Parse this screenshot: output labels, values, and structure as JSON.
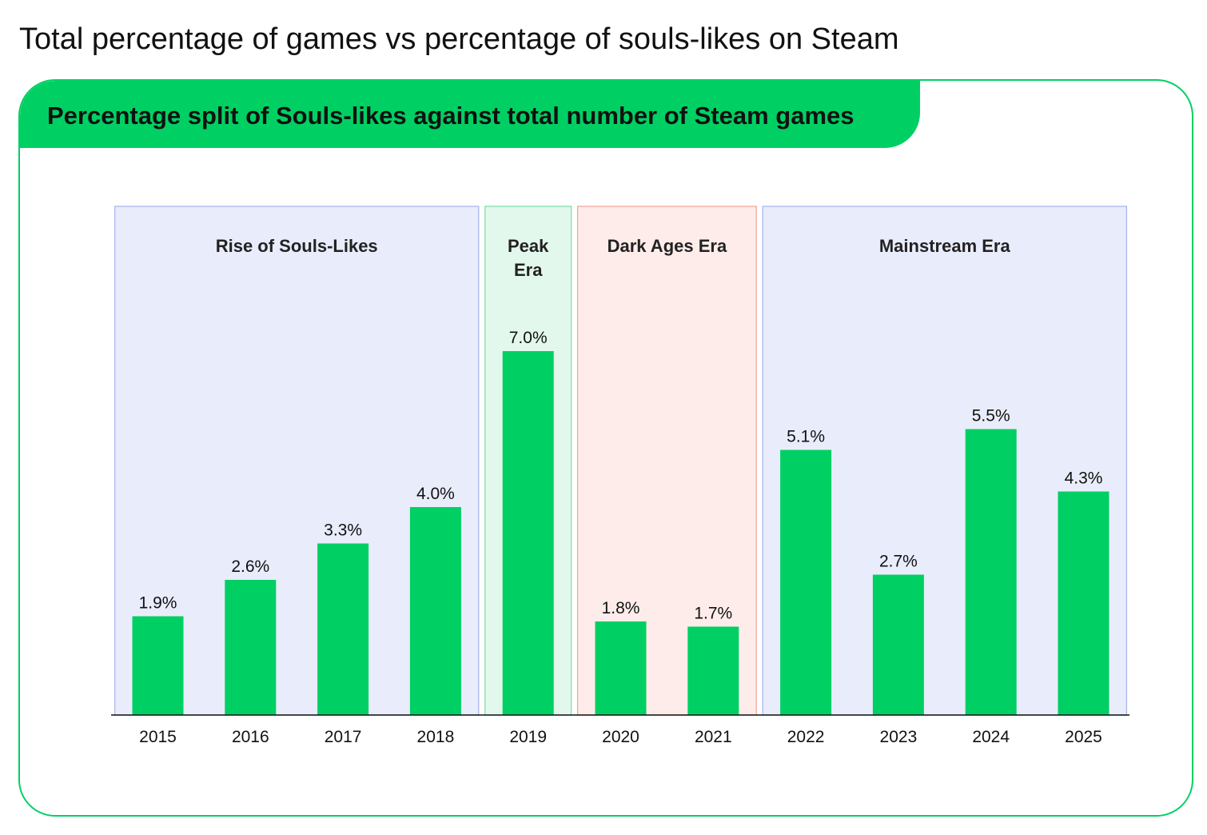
{
  "page": {
    "title": "Total percentage of games vs percentage of souls-likes on Steam"
  },
  "card": {
    "header": "Percentage split of Souls-likes against total number of Steam games"
  },
  "colors": {
    "accent": "#00d063",
    "bar": "#00d063",
    "era_blue_fill": "#e9ecfb",
    "era_blue_border": "#a9b6ee",
    "era_green_fill": "#e3f8ec",
    "era_green_border": "#86dcaa",
    "era_red_fill": "#fdecea",
    "era_red_border": "#f2a79f"
  },
  "chart_data": {
    "type": "bar",
    "title": "Percentage split of Souls-likes against total number of Steam games",
    "xlabel": "",
    "ylabel": "",
    "ylim": [
      0,
      7.0
    ],
    "grid": false,
    "categories": [
      "2015",
      "2016",
      "2017",
      "2018",
      "2019",
      "2020",
      "2021",
      "2022",
      "2023",
      "2024",
      "2025"
    ],
    "values": [
      1.9,
      2.6,
      3.3,
      4.0,
      7.0,
      1.8,
      1.7,
      5.1,
      2.7,
      5.5,
      4.3
    ],
    "data_labels": [
      "1.9%",
      "2.6%",
      "3.3%",
      "4.0%",
      "7.0%",
      "1.8%",
      "1.7%",
      "5.1%",
      "2.7%",
      "5.5%",
      "4.3%"
    ],
    "eras": [
      {
        "name": "Rise of Souls-Likes",
        "lines": [
          "Rise of Souls-Likes"
        ],
        "from": 0,
        "to": 3,
        "color": "blue"
      },
      {
        "name": "Peak Era",
        "lines": [
          "Peak",
          "Era"
        ],
        "from": 4,
        "to": 4,
        "color": "green"
      },
      {
        "name": "Dark Ages Era",
        "lines": [
          "Dark Ages Era"
        ],
        "from": 5,
        "to": 6,
        "color": "red"
      },
      {
        "name": "Mainstream Era",
        "lines": [
          "Mainstream Era"
        ],
        "from": 7,
        "to": 10,
        "color": "blue"
      }
    ]
  }
}
